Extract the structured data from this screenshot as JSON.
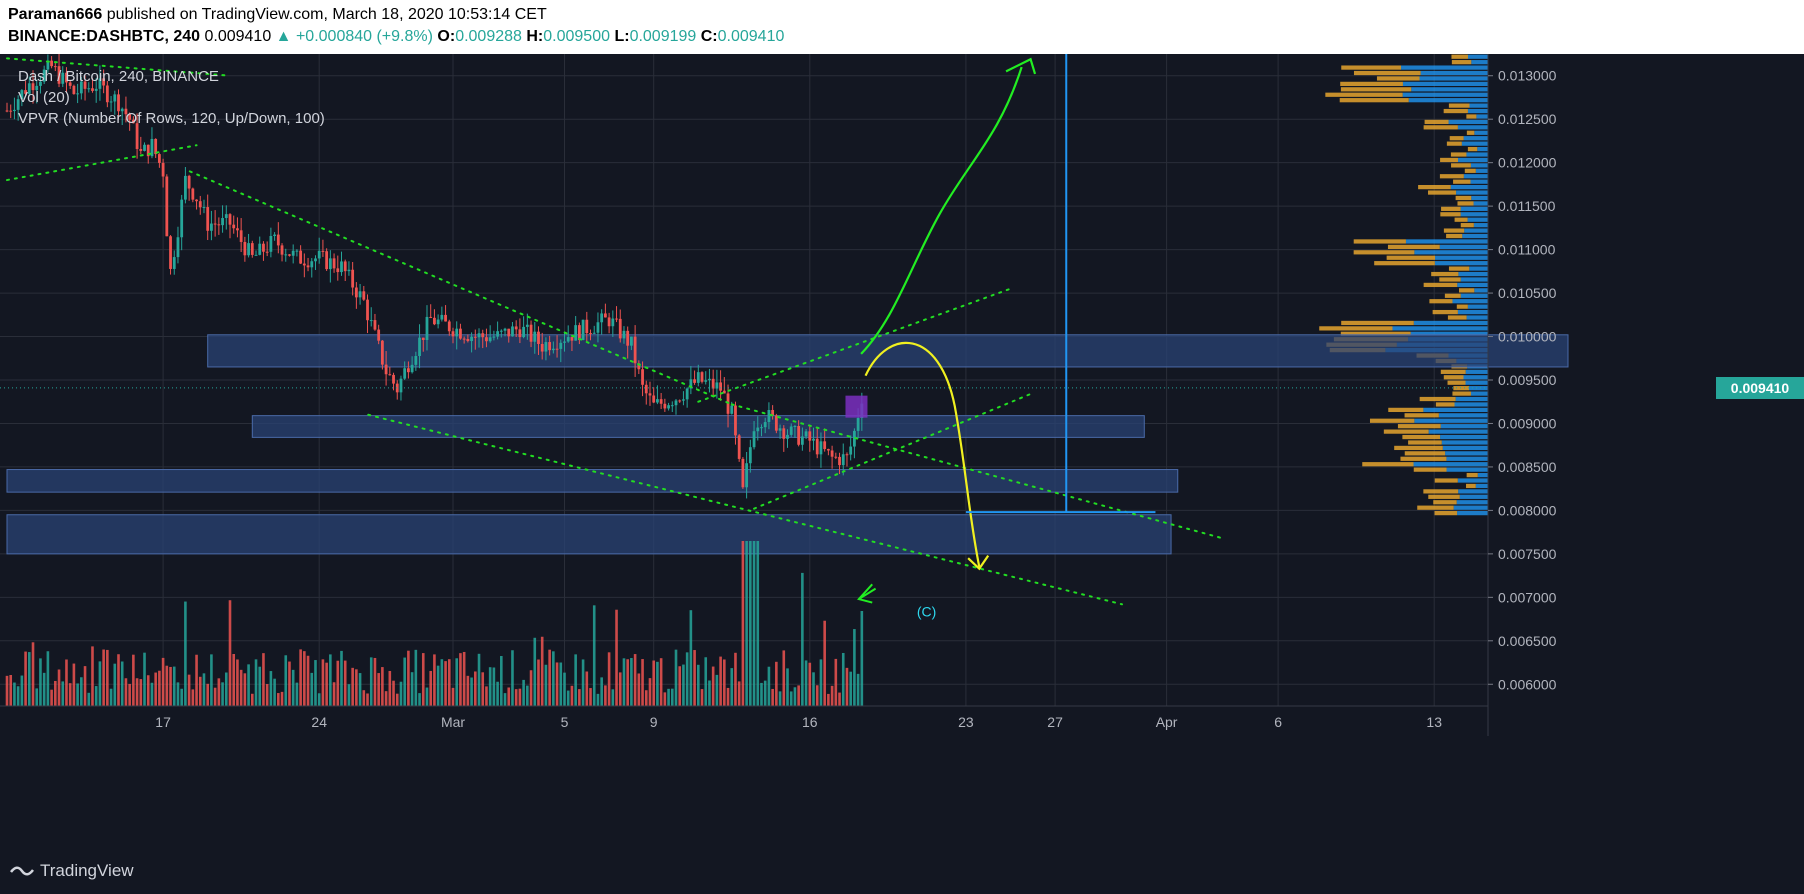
{
  "header": {
    "author": "Paraman666",
    "published_text": " published on TradingView.com, March 18, 2020 10:53:14 CET",
    "symbol": "BINANCE:DASHBTC, 240",
    "last": "0.009410",
    "change": "▲ +0.000840 (+9.8%)",
    "o_label": "O:",
    "o_val": "0.009288",
    "h_label": "H:",
    "h_val": "0.009500",
    "l_label": "L:",
    "l_val": "0.009199",
    "c_label": "C:",
    "c_val": "0.009410"
  },
  "legend": {
    "pair": "Dash / Bitcoin, 240, BINANCE",
    "vol": "Vol (20)",
    "vpvr": "VPVR (Number Of Rows, 120, Up/Down, 100)"
  },
  "annotation": "(C)",
  "price_tag": "0.009410",
  "footer": {
    "brand": "TradingView"
  },
  "colors": {
    "background": "#131722",
    "up": "#26a69a",
    "down": "#ef5350",
    "zone": "#2a4374",
    "trend": "#22dd22",
    "arrow_green": "#22ee22",
    "arrow_yellow": "#f0f020",
    "measure": "#2196f3",
    "vp_up": "#2196f3",
    "vp_down": "#e6a52e"
  },
  "chart_data": {
    "type": "candlestick",
    "y_axis": {
      "min": 0.00575,
      "max": 0.01325,
      "ticks": [
        "0.013000",
        "0.012500",
        "0.012000",
        "0.011500",
        "0.011000",
        "0.010500",
        "0.010000",
        "0.009500",
        "0.009000",
        "0.008500",
        "0.008000",
        "0.007500",
        "0.007000",
        "0.006500",
        "0.006000"
      ]
    },
    "x_axis": {
      "ticks": [
        {
          "label": "17",
          "day": 17
        },
        {
          "label": "24",
          "day": 24
        },
        {
          "label": "Mar",
          "day": 30
        },
        {
          "label": "5",
          "day": 35
        },
        {
          "label": "9",
          "day": 39
        },
        {
          "label": "16",
          "day": 46
        },
        {
          "label": "23",
          "day": 53
        },
        {
          "label": "27",
          "day": 57
        },
        {
          "label": "Apr",
          "day": 62
        },
        {
          "label": "6",
          "day": 67
        },
        {
          "label": "13",
          "day": 74
        }
      ]
    },
    "price_path": [
      [
        10,
        0.0126
      ],
      [
        11,
        0.0129
      ],
      [
        12,
        0.0131
      ],
      [
        13,
        0.0128
      ],
      [
        14,
        0.0129
      ],
      [
        15,
        0.0127
      ],
      [
        15.5,
        0.0125
      ],
      [
        16,
        0.0121
      ],
      [
        16.5,
        0.0122
      ],
      [
        17,
        0.0119
      ],
      [
        17.3,
        0.0107
      ],
      [
        17.7,
        0.0113
      ],
      [
        18,
        0.0118
      ],
      [
        18.5,
        0.0116
      ],
      [
        19,
        0.0113
      ],
      [
        20,
        0.0113
      ],
      [
        21,
        0.0109
      ],
      [
        22,
        0.0111
      ],
      [
        23,
        0.0109
      ],
      [
        24,
        0.0109
      ],
      [
        25,
        0.0108
      ],
      [
        26,
        0.0104
      ],
      [
        27,
        0.0096
      ],
      [
        27.5,
        0.0094
      ],
      [
        28,
        0.0097
      ],
      [
        29,
        0.0102
      ],
      [
        30,
        0.0101
      ],
      [
        31,
        0.01
      ],
      [
        32,
        0.01
      ],
      [
        33,
        0.0101
      ],
      [
        34,
        0.0099
      ],
      [
        35,
        0.01
      ],
      [
        36,
        0.0101
      ],
      [
        37,
        0.0102
      ],
      [
        38,
        0.0099
      ],
      [
        38.5,
        0.0094
      ],
      [
        39,
        0.0092
      ],
      [
        40,
        0.0093
      ],
      [
        41,
        0.0095
      ],
      [
        42,
        0.0094
      ],
      [
        42.5,
        0.0091
      ],
      [
        43,
        0.0082
      ],
      [
        43.5,
        0.009
      ],
      [
        44,
        0.0091
      ],
      [
        45,
        0.0089
      ],
      [
        46,
        0.0088
      ],
      [
        47,
        0.0086
      ],
      [
        47.7,
        0.0086
      ],
      [
        48,
        0.0089
      ],
      [
        48.4,
        0.0094
      ]
    ],
    "volume_max": 0.0115,
    "zones": [
      {
        "x1": 19,
        "x2": 80,
        "y1": 0.00965,
        "y2": 0.01002
      },
      {
        "x1": 21,
        "x2": 61,
        "y1": 0.00884,
        "y2": 0.00909
      },
      {
        "x1": 10,
        "x2": 62.5,
        "y1": 0.00821,
        "y2": 0.00847
      },
      {
        "x1": 10,
        "x2": 62.2,
        "y1": 0.0075,
        "y2": 0.00795
      }
    ],
    "trendlines": [
      {
        "x1": 10,
        "y1": 0.0132,
        "x2": 20,
        "y2": 0.013
      },
      {
        "x1": 10,
        "y1": 0.0118,
        "x2": 18.5,
        "y2": 0.0122
      },
      {
        "x1": 18.2,
        "y1": 0.0119,
        "x2": 42.5,
        "y2": 0.00922
      },
      {
        "x1": 42.5,
        "y1": 0.00922,
        "x2": 64.5,
        "y2": 0.00768
      },
      {
        "x1": 26.2,
        "y1": 0.0091,
        "x2": 60,
        "y2": 0.00692
      },
      {
        "x1": 41,
        "y1": 0.00925,
        "x2": 55,
        "y2": 0.01055
      },
      {
        "x1": 43.5,
        "y1": 0.00802,
        "x2": 56,
        "y2": 0.00935
      }
    ],
    "last_price": 0.00941
  }
}
